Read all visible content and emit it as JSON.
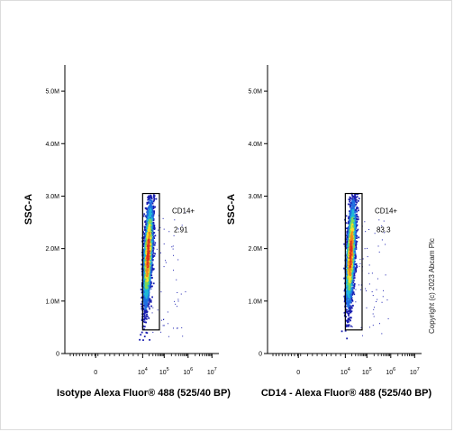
{
  "copyright": "Copyright (c) 2023 Abcam Plc",
  "colors": {
    "axis": "#000000",
    "gate": "#000000"
  },
  "chart_data": [
    {
      "type": "scatter",
      "subtype": "flow-cytometry-density",
      "title": "",
      "xlabel": "Isotype Alexa Fluor® 488  (525/40 BP)",
      "ylabel": "SSC-A",
      "x_scale": "log",
      "y_ticks": [
        "0",
        "1.0M",
        "2.0M",
        "3.0M",
        "4.0M",
        "5.0M"
      ],
      "x_ticks": [
        "0",
        "10",
        "10",
        "10",
        "10"
      ],
      "x_tick_exponents": [
        "",
        "4",
        "5",
        "6",
        "7"
      ],
      "ylim": [
        0,
        5500000
      ],
      "gate": {
        "name": "CD14+",
        "value": "2.91",
        "x_range": [
          10000,
          60000
        ],
        "y_range": [
          450000,
          3050000
        ]
      },
      "population": {
        "x_center": 18000,
        "y_center": 1900000
      }
    },
    {
      "type": "scatter",
      "subtype": "flow-cytometry-density",
      "title": "",
      "xlabel": "CD14 -  Alexa Fluor® 488  (525/40 BP)",
      "ylabel": "SSC-A",
      "x_scale": "log",
      "y_ticks": [
        "0",
        "1.0M",
        "2.0M",
        "3.0M",
        "4.0M",
        "5.0M"
      ],
      "x_ticks": [
        "0",
        "10",
        "10",
        "10",
        "10"
      ],
      "x_tick_exponents": [
        "",
        "4",
        "5",
        "6",
        "7"
      ],
      "ylim": [
        0,
        5500000
      ],
      "gate": {
        "name": "CD14+",
        "value": "83.3",
        "x_range": [
          10000,
          60000
        ],
        "y_range": [
          450000,
          3050000
        ]
      },
      "population": {
        "x_center": 18000,
        "y_center": 1900000
      }
    }
  ]
}
